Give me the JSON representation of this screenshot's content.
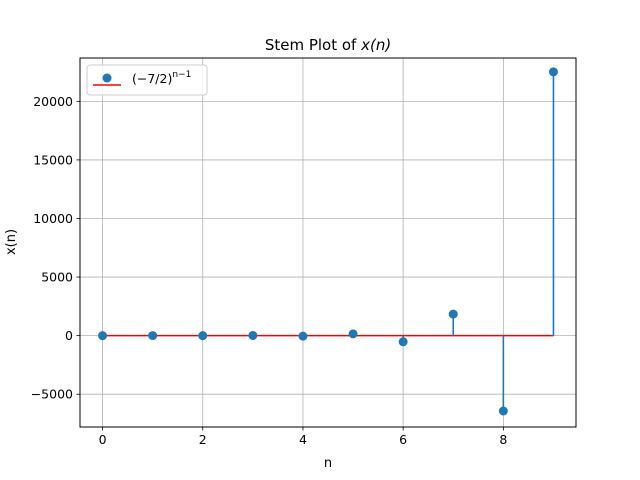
{
  "chart_data": {
    "type": "stem",
    "title_prefix": "Stem Plot of ",
    "title_math": "x(n)",
    "xlabel": "n",
    "ylabel": "x(n)",
    "xlim": [
      -0.45,
      9.45
    ],
    "ylim": [
      -7800,
      23700
    ],
    "xticks": [
      0,
      2,
      4,
      6,
      8
    ],
    "yticks": [
      -5000,
      0,
      5000,
      10000,
      15000,
      20000
    ],
    "ytick_labels": [
      "−5000",
      "0",
      "5000",
      "10000",
      "15000",
      "20000"
    ],
    "grid": true,
    "legend": {
      "position": "top-left",
      "base": "(−7/2)",
      "exponent": "n−1"
    },
    "colors": {
      "markers": "#1f77b4",
      "stems": "#1f77b4",
      "baseline": "#ff0000",
      "grid": "#b0b0b0"
    },
    "series": [
      {
        "x": [
          0,
          1,
          2,
          3,
          4,
          5,
          6,
          7,
          8,
          9
        ],
        "values": [
          -0.286,
          1,
          -3.5,
          12.25,
          -42.875,
          150.06,
          -525.22,
          1838.27,
          -6433.93,
          22518.75
        ]
      }
    ]
  }
}
